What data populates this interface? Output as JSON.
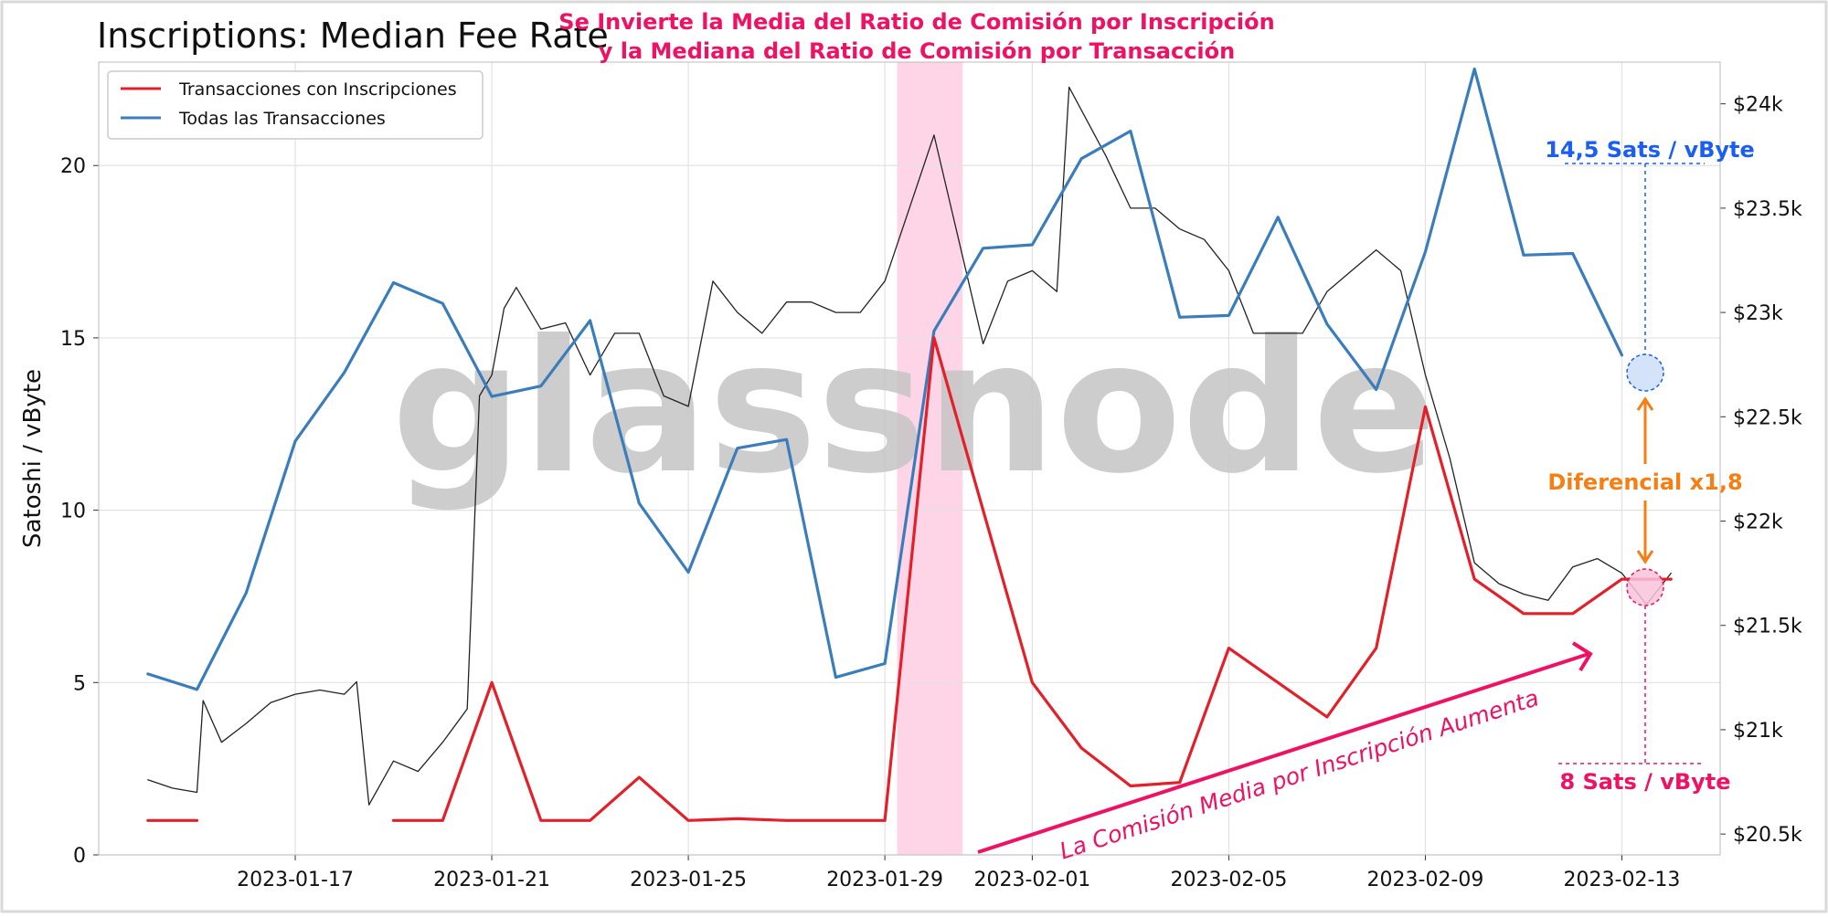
{
  "chart_data": {
    "type": "line",
    "title": "Inscriptions: Median Fee Rate",
    "subtitle_lines": [
      "Se Invierte la Media del Ratio de Comisión por Inscripción",
      "y la Mediana del Ratio de Comisión por Transacción"
    ],
    "ylabel_left": "Satoshi / vByte",
    "ylim_left": [
      0,
      23
    ],
    "y_ticks_left": [
      0,
      5,
      10,
      15,
      20
    ],
    "ylim_right": [
      20400,
      24200
    ],
    "y_ticks_right": [
      {
        "value": 20500,
        "label": "$20.5k"
      },
      {
        "value": 21000,
        "label": "$21k"
      },
      {
        "value": 21500,
        "label": "$21.5k"
      },
      {
        "value": 22000,
        "label": "$22k"
      },
      {
        "value": 22500,
        "label": "$22.5k"
      },
      {
        "value": 23000,
        "label": "$23k"
      },
      {
        "value": 23500,
        "label": "$23.5k"
      },
      {
        "value": 24000,
        "label": "$24k"
      }
    ],
    "xlim": [
      "2023-01-13",
      "2023-02-15"
    ],
    "x_ticks": [
      {
        "date": "2023-01-17",
        "label": "2023-01-17"
      },
      {
        "date": "2023-01-21",
        "label": "2023-01-21"
      },
      {
        "date": "2023-01-25",
        "label": "2023-01-25"
      },
      {
        "date": "2023-01-29",
        "label": "2023-01-29"
      },
      {
        "date": "2023-02-01",
        "label": "2023-02-01"
      },
      {
        "date": "2023-02-05",
        "label": "2023-02-05"
      },
      {
        "date": "2023-02-09",
        "label": "2023-02-09"
      },
      {
        "date": "2023-02-13",
        "label": "2023-02-13"
      }
    ],
    "grid": true,
    "legend_position": "top-left",
    "highlight_band": {
      "from": "2023-01-29 06:00",
      "to": "2023-01-30 14:00",
      "color": "#fdd5e6"
    },
    "watermark": "glassnode",
    "series": [
      {
        "name": "Transacciones con Inscripciones",
        "axis": "left",
        "color": "#e3202a",
        "points": [
          [
            "2023-01-14 00:00",
            1
          ],
          [
            "2023-01-15 00:00",
            1
          ],
          null,
          [
            "2023-01-19 00:00",
            1
          ],
          [
            "2023-01-20 00:00",
            1
          ],
          [
            "2023-01-21 00:00",
            5
          ],
          [
            "2023-01-22 00:00",
            1
          ],
          [
            "2023-01-23 00:00",
            1
          ],
          [
            "2023-01-24 00:00",
            2.25
          ],
          [
            "2023-01-25 00:00",
            1
          ],
          [
            "2023-01-26 00:00",
            1.05
          ],
          [
            "2023-01-27 00:00",
            1
          ],
          [
            "2023-01-28 00:00",
            1
          ],
          [
            "2023-01-29 00:00",
            1
          ],
          [
            "2023-01-30 00:00",
            15
          ],
          [
            "2023-01-31 00:00",
            10
          ],
          [
            "2023-02-01 00:00",
            5
          ],
          [
            "2023-02-02 00:00",
            3.1
          ],
          [
            "2023-02-03 00:00",
            2
          ],
          [
            "2023-02-04 00:00",
            2.1
          ],
          [
            "2023-02-05 00:00",
            6
          ],
          [
            "2023-02-06 00:00",
            5
          ],
          [
            "2023-02-07 00:00",
            4
          ],
          [
            "2023-02-08 00:00",
            6
          ],
          [
            "2023-02-09 00:00",
            13
          ],
          [
            "2023-02-10 00:00",
            8
          ],
          [
            "2023-02-11 00:00",
            7
          ],
          [
            "2023-02-12 00:00",
            7
          ],
          [
            "2023-02-13 00:00",
            8
          ],
          [
            "2023-02-14 00:00",
            8
          ]
        ]
      },
      {
        "name": "Todas las Transacciones",
        "axis": "left",
        "color": "#3b7dbb",
        "points": [
          [
            "2023-01-14 00:00",
            5.25
          ],
          [
            "2023-01-15 00:00",
            4.8
          ],
          [
            "2023-01-16 00:00",
            7.6
          ],
          [
            "2023-01-17 00:00",
            12
          ],
          [
            "2023-01-18 00:00",
            14
          ],
          [
            "2023-01-19 00:00",
            16.6
          ],
          [
            "2023-01-20 00:00",
            16
          ],
          [
            "2023-01-21 00:00",
            13.3
          ],
          [
            "2023-01-22 00:00",
            13.6
          ],
          [
            "2023-01-23 00:00",
            15.5
          ],
          [
            "2023-01-24 00:00",
            10.2
          ],
          [
            "2023-01-25 00:00",
            8.2
          ],
          [
            "2023-01-26 00:00",
            11.8
          ],
          [
            "2023-01-27 00:00",
            12.05
          ],
          [
            "2023-01-28 00:00",
            5.15
          ],
          [
            "2023-01-29 00:00",
            5.55
          ],
          [
            "2023-01-30 00:00",
            15.2
          ],
          [
            "2023-01-31 00:00",
            17.6
          ],
          [
            "2023-02-01 00:00",
            17.7
          ],
          [
            "2023-02-02 00:00",
            20.2
          ],
          [
            "2023-02-03 00:00",
            21
          ],
          [
            "2023-02-04 00:00",
            15.6
          ],
          [
            "2023-02-05 00:00",
            15.65
          ],
          [
            "2023-02-06 00:00",
            18.5
          ],
          [
            "2023-02-07 00:00",
            15.4
          ],
          [
            "2023-02-08 00:00",
            13.5
          ],
          [
            "2023-02-09 00:00",
            17.5
          ],
          [
            "2023-02-10 00:00",
            22.8
          ],
          [
            "2023-02-11 00:00",
            17.4
          ],
          [
            "2023-02-12 00:00",
            17.45
          ],
          [
            "2023-02-13 00:00",
            14.5
          ]
        ]
      },
      {
        "name": "",
        "axis": "right",
        "color": "#222222",
        "points": [
          [
            "2023-01-14 00:00",
            20.76
          ],
          [
            "2023-01-14 12:00",
            20.72
          ],
          [
            "2023-01-15 00:00",
            20.7
          ],
          [
            "2023-01-15 03:00",
            21.14
          ],
          [
            "2023-01-15 12:00",
            20.94
          ],
          [
            "2023-01-16 00:00",
            21.03
          ],
          [
            "2023-01-16 12:00",
            21.13
          ],
          [
            "2023-01-17 00:00",
            21.17
          ],
          [
            "2023-01-17 12:00",
            21.19
          ],
          [
            "2023-01-18 00:00",
            21.17
          ],
          [
            "2023-01-18 06:00",
            21.23
          ],
          [
            "2023-01-18 12:00",
            20.64
          ],
          [
            "2023-01-19 00:00",
            20.85
          ],
          [
            "2023-01-19 12:00",
            20.8
          ],
          [
            "2023-01-20 00:00",
            20.94
          ],
          [
            "2023-01-20 12:00",
            21.1
          ],
          [
            "2023-01-20 18:00",
            22.6
          ],
          [
            "2023-01-21 00:00",
            22.7
          ],
          [
            "2023-01-21 06:00",
            23.02
          ],
          [
            "2023-01-21 12:00",
            23.12
          ],
          [
            "2023-01-22 00:00",
            22.92
          ],
          [
            "2023-01-22 12:00",
            22.95
          ],
          [
            "2023-01-23 00:00",
            22.7
          ],
          [
            "2023-01-23 12:00",
            22.9
          ],
          [
            "2023-01-24 00:00",
            22.9
          ],
          [
            "2023-01-24 12:00",
            22.6
          ],
          [
            "2023-01-25 00:00",
            22.55
          ],
          [
            "2023-01-25 12:00",
            23.15
          ],
          [
            "2023-01-26 00:00",
            23.0
          ],
          [
            "2023-01-26 12:00",
            22.9
          ],
          [
            "2023-01-27 00:00",
            23.05
          ],
          [
            "2023-01-27 12:00",
            23.05
          ],
          [
            "2023-01-28 00:00",
            23.0
          ],
          [
            "2023-01-28 12:00",
            23.0
          ],
          [
            "2023-01-29 00:00",
            23.15
          ],
          [
            "2023-01-29 12:00",
            23.5
          ],
          [
            "2023-01-30 00:00",
            23.85
          ],
          [
            "2023-01-30 12:00",
            23.35
          ],
          [
            "2023-01-31 00:00",
            22.85
          ],
          [
            "2023-01-31 12:00",
            23.15
          ],
          [
            "2023-02-01 00:00",
            23.2
          ],
          [
            "2023-02-01 12:00",
            23.1
          ],
          [
            "2023-02-01 18:00",
            24.08
          ],
          [
            "2023-02-02 12:00",
            23.75
          ],
          [
            "2023-02-03 00:00",
            23.5
          ],
          [
            "2023-02-03 12:00",
            23.5
          ],
          [
            "2023-02-04 00:00",
            23.4
          ],
          [
            "2023-02-04 12:00",
            23.35
          ],
          [
            "2023-02-05 00:00",
            23.2
          ],
          [
            "2023-02-05 12:00",
            22.9
          ],
          [
            "2023-02-06 00:00",
            22.9
          ],
          [
            "2023-02-06 12:00",
            22.9
          ],
          [
            "2023-02-07 00:00",
            23.1
          ],
          [
            "2023-02-07 12:00",
            23.2
          ],
          [
            "2023-02-08 00:00",
            23.3
          ],
          [
            "2023-02-08 12:00",
            23.2
          ],
          [
            "2023-02-09 00:00",
            22.7
          ],
          [
            "2023-02-09 12:00",
            22.3
          ],
          [
            "2023-02-10 00:00",
            21.8
          ],
          [
            "2023-02-10 12:00",
            21.7
          ],
          [
            "2023-02-11 00:00",
            21.65
          ],
          [
            "2023-02-11 12:00",
            21.62
          ],
          [
            "2023-02-12 00:00",
            21.78
          ],
          [
            "2023-02-12 12:00",
            21.82
          ],
          [
            "2023-02-13 00:00",
            21.75
          ],
          [
            "2023-02-13 12:00",
            21.6
          ],
          [
            "2023-02-14 00:00",
            21.75
          ]
        ]
      }
    ],
    "annotations": {
      "top_value": "14,5 Sats / vByte",
      "bottom_value": "8 Sats / vByte",
      "difference": "Diferencial x1,8",
      "trend": "La Comisión Media por Inscripción Aumenta"
    },
    "colors": {
      "inscriptions": "#e3202a",
      "all": "#3b7dbb",
      "price": "#222222",
      "pink": "#ee1164",
      "blue_annotation": "#1a5ef2",
      "orange": "#f57e15",
      "grid": "#e2e2e2"
    }
  }
}
